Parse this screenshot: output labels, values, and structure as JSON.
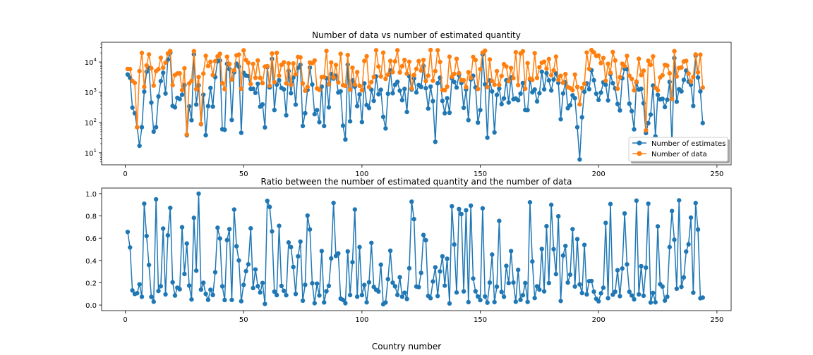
{
  "chart_data": [
    {
      "type": "line",
      "title": "Number of data vs number of estimated quantity",
      "xlabel": "",
      "ylabel": "",
      "yscale": "log",
      "xlim": [
        -10,
        256
      ],
      "ylim": [
        4,
        45000
      ],
      "xticks": [
        0,
        50,
        100,
        150,
        200,
        250
      ],
      "yticks": [
        {
          "value": 10,
          "base": "10",
          "exp": "1"
        },
        {
          "value": 100,
          "base": "10",
          "exp": "2"
        },
        {
          "value": 1000,
          "base": "10",
          "exp": "3"
        },
        {
          "value": 10000,
          "base": "10",
          "exp": "4"
        }
      ],
      "legend": "lower-right",
      "series": [
        {
          "name": "Number of estimates",
          "color": "#1f77b4"
        },
        {
          "name": "Number of data",
          "color": "#ff7f0e"
        }
      ]
    },
    {
      "type": "line",
      "title": "Ratio between the number of estimated quantity and the number of data",
      "xlabel": "Country number",
      "ylabel": "",
      "xlim": [
        -10,
        256
      ],
      "ylim": [
        -0.05,
        1.05
      ],
      "xticks": [
        0,
        50,
        100,
        150,
        200,
        250
      ],
      "yticks": [
        "0.0",
        "0.2",
        "0.4",
        "0.6",
        "0.8",
        "1.0"
      ],
      "series": [
        {
          "color": "#1f77b4"
        }
      ]
    }
  ]
}
